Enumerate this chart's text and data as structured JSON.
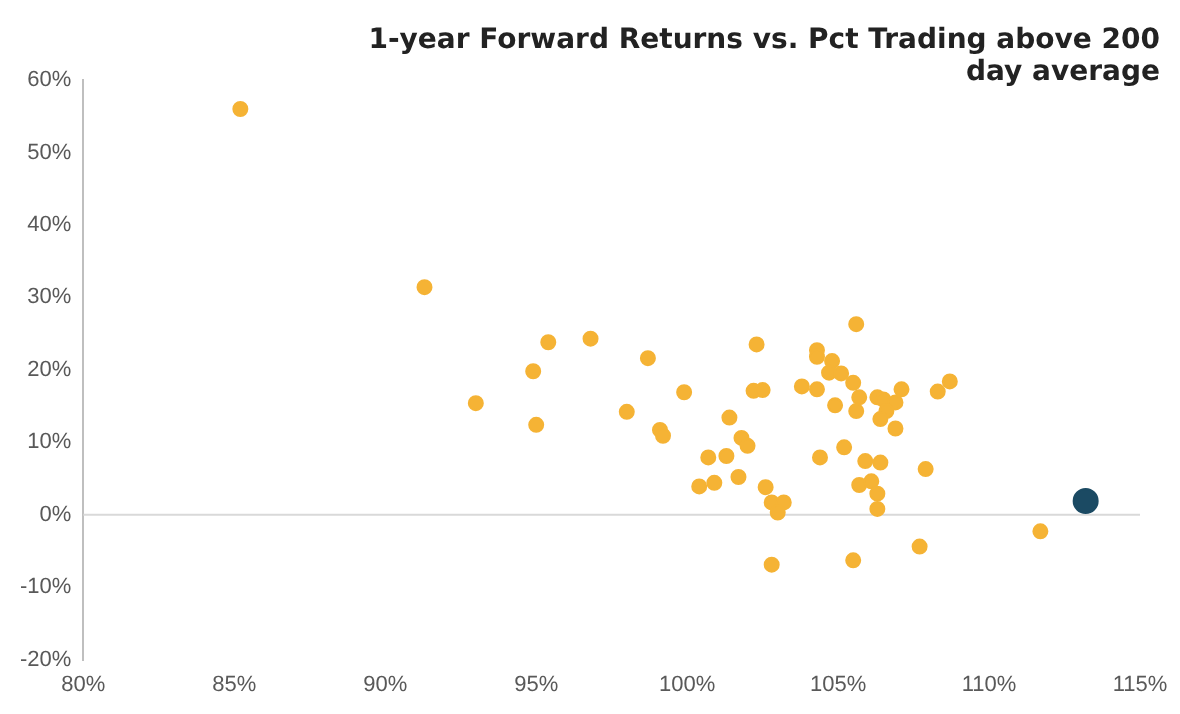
{
  "chart_data": {
    "type": "scatter",
    "title": "1-year Forward Returns vs. Pct Trading above 200 day average",
    "xlim": [
      80,
      115
    ],
    "xticks": [
      {
        "value": 80,
        "label": "80%"
      },
      {
        "value": 85,
        "label": "85%"
      },
      {
        "value": 90,
        "label": "90%"
      },
      {
        "value": 95,
        "label": "95%"
      },
      {
        "value": 100,
        "label": "100%"
      },
      {
        "value": 105,
        "label": "105%"
      },
      {
        "value": 110,
        "label": "110%"
      },
      {
        "value": 115,
        "label": "115%"
      }
    ],
    "ylim": [
      -20,
      60
    ],
    "yticks": [
      {
        "value": -20,
        "label": "-20%"
      },
      {
        "value": -10,
        "label": "-10%"
      },
      {
        "value": 0,
        "label": "0%"
      },
      {
        "value": 10,
        "label": "10%"
      },
      {
        "value": 20,
        "label": "20%"
      },
      {
        "value": 30,
        "label": "30%"
      },
      {
        "value": 40,
        "label": "40%"
      },
      {
        "value": 50,
        "label": "50%"
      },
      {
        "value": 60,
        "label": "60%"
      }
    ],
    "grid": false,
    "legend": false,
    "marker": "circle",
    "ref_lines": [
      {
        "axis": "y",
        "value": 0,
        "color": "#d9d9d9"
      }
    ],
    "series": [
      {
        "color": "#f5b335",
        "x": [
          85.2,
          91.3,
          95.4,
          96.8,
          94.9,
          93.0,
          95.0,
          98.0,
          98.7,
          102.3,
          105.6,
          104.3,
          104.3,
          104.8,
          104.7,
          105.1,
          105.5,
          103.8,
          104.3,
          107.1,
          108.3,
          108.7,
          99.9,
          102.2,
          102.5,
          105.7,
          106.3,
          106.5,
          106.9,
          104.9,
          105.6,
          106.6,
          106.4,
          106.9,
          101.4,
          99.1,
          99.2,
          101.8,
          102.0,
          105.2,
          100.7,
          101.3,
          104.4,
          105.9,
          106.4,
          107.9,
          100.4,
          100.9,
          101.7,
          102.6,
          105.7,
          106.1,
          106.3,
          102.8,
          103.2,
          103.0,
          106.3,
          111.7,
          107.7,
          102.8,
          105.5
        ],
        "values": [
          56.0,
          31.4,
          23.8,
          24.3,
          19.8,
          15.4,
          12.4,
          14.2,
          21.6,
          23.5,
          26.3,
          22.7,
          21.8,
          21.2,
          19.6,
          19.5,
          18.2,
          17.7,
          17.3,
          17.3,
          17.0,
          18.4,
          16.9,
          17.1,
          17.2,
          16.2,
          16.2,
          15.9,
          15.5,
          15.1,
          14.3,
          14.3,
          13.2,
          11.9,
          13.4,
          11.7,
          10.9,
          10.6,
          9.5,
          9.3,
          7.9,
          8.1,
          7.9,
          7.4,
          7.2,
          6.3,
          3.9,
          4.4,
          5.2,
          3.8,
          4.1,
          4.6,
          2.9,
          1.7,
          1.7,
          0.3,
          0.8,
          -2.3,
          -4.4,
          -6.9,
          -6.3
        ]
      },
      {
        "color": "#1b4a63",
        "x": [
          113.2
        ],
        "values": [
          1.9
        ]
      }
    ]
  }
}
